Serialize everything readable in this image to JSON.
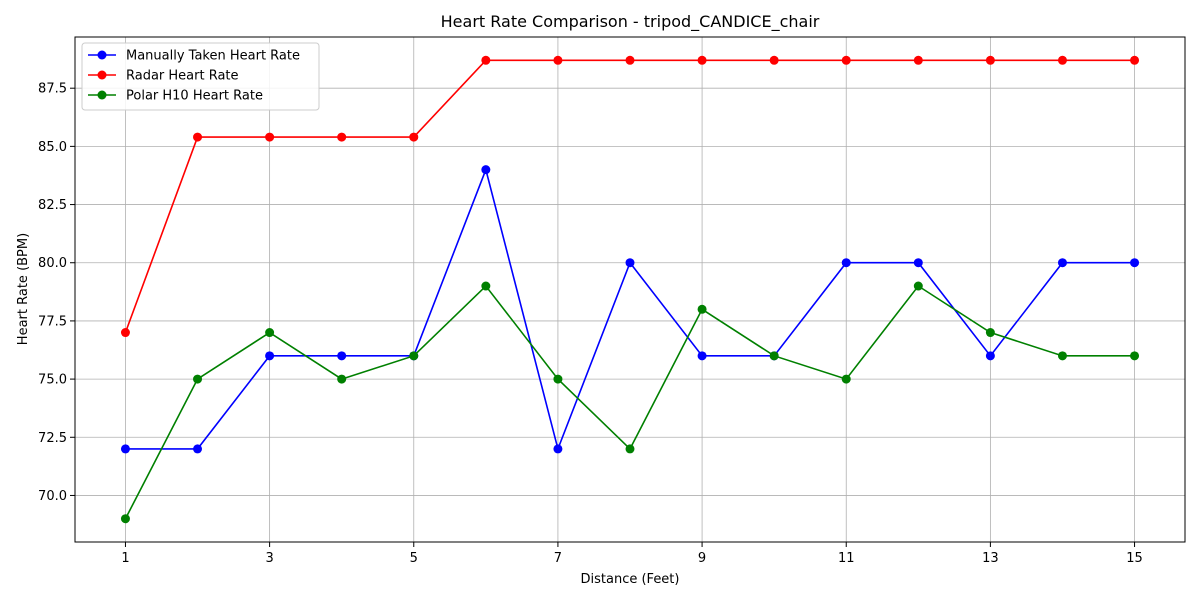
{
  "chart_data": {
    "type": "line",
    "title": "Heart Rate Comparison - tripod_CANDICE_chair",
    "xlabel": "Distance (Feet)",
    "ylabel": "Heart Rate (BPM)",
    "x": [
      1,
      2,
      3,
      4,
      5,
      6,
      7,
      8,
      9,
      10,
      11,
      12,
      13,
      14,
      15
    ],
    "xticks": [
      1,
      3,
      5,
      7,
      9,
      11,
      13,
      15
    ],
    "xtick_labels": [
      "1",
      "3",
      "5",
      "7",
      "9",
      "11",
      "13",
      "15"
    ],
    "yticks": [
      70.0,
      72.5,
      75.0,
      77.5,
      80.0,
      82.5,
      85.0,
      87.5
    ],
    "ytick_labels": [
      "70.0",
      "72.5",
      "75.0",
      "77.5",
      "80.0",
      "82.5",
      "85.0",
      "87.5"
    ],
    "xlim": [
      0.3,
      15.7
    ],
    "ylim": [
      68.0,
      89.7
    ],
    "grid": true,
    "legend_position": "top-left",
    "series": [
      {
        "name": "Manually Taken Heart Rate",
        "color": "#0000ff",
        "values": [
          72,
          72,
          76,
          76,
          76,
          84,
          72,
          80,
          76,
          76,
          80,
          80,
          76,
          80,
          80
        ]
      },
      {
        "name": "Radar Heart Rate",
        "color": "#ff0000",
        "values": [
          77,
          85.4,
          85.4,
          85.4,
          85.4,
          88.7,
          88.7,
          88.7,
          88.7,
          88.7,
          88.7,
          88.7,
          88.7,
          88.7,
          88.7
        ]
      },
      {
        "name": "Polar H10 Heart Rate",
        "color": "#008000",
        "values": [
          69,
          75,
          77,
          75,
          76,
          79,
          75,
          72,
          78,
          76,
          75,
          79,
          77,
          76,
          76
        ]
      }
    ]
  }
}
